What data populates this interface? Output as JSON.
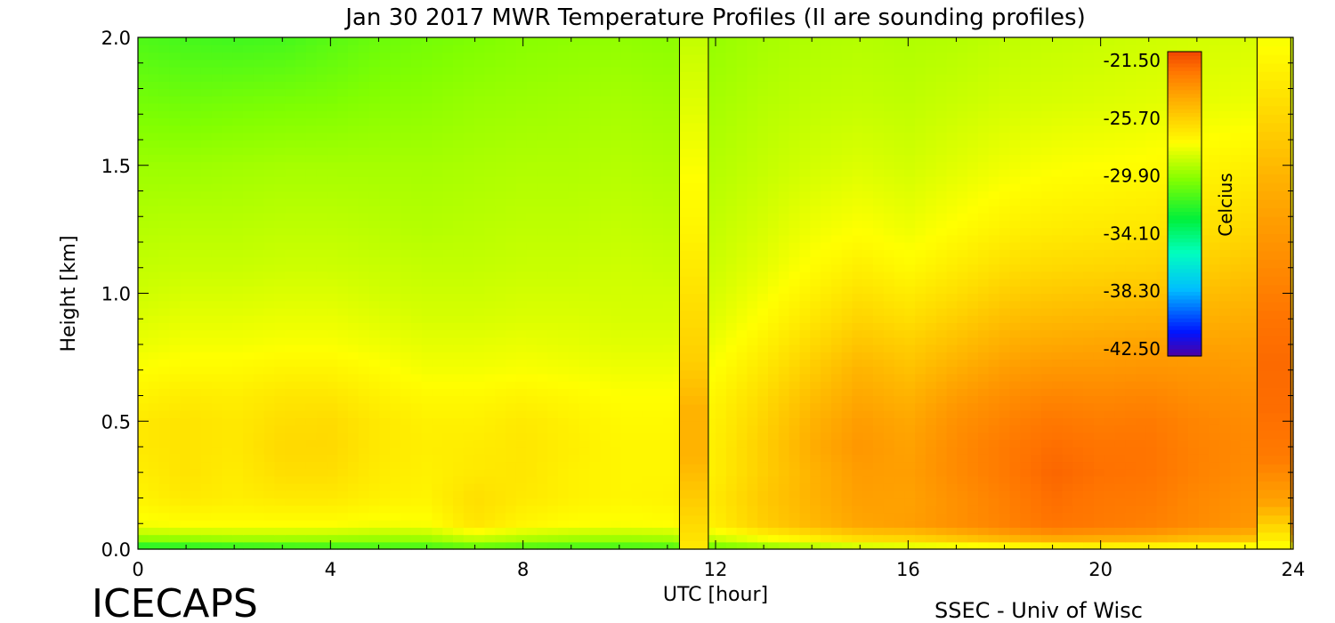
{
  "chart_data": {
    "type": "heatmap",
    "title": "Jan 30 2017 MWR Temperature Profiles (II are sounding profiles)",
    "xlabel": "UTC [hour]",
    "ylabel": "Height [km]",
    "x_ticks": [
      "0",
      "4",
      "8",
      "12",
      "16",
      "20",
      "24"
    ],
    "y_ticks": [
      "0.0",
      "0.5",
      "1.0",
      "1.5",
      "2.0"
    ],
    "xlim": [
      0,
      24
    ],
    "ylim": [
      0,
      2
    ],
    "colorbar": {
      "label": "Celcius",
      "ticks": [
        "-21.50",
        "-25.70",
        "-29.90",
        "-34.10",
        "-38.30",
        "-42.50"
      ],
      "range": [
        -42.5,
        -21.5
      ]
    },
    "heights_km": [
      0.0,
      0.05,
      0.1,
      0.2,
      0.3,
      0.4,
      0.5,
      0.6,
      0.7,
      0.8,
      0.9,
      1.0,
      1.1,
      1.25,
      1.5,
      1.75,
      2.0
    ],
    "hours": [
      0,
      1,
      2,
      3,
      4,
      5,
      6,
      7,
      8,
      9,
      10,
      11,
      12,
      13,
      14,
      15,
      16,
      17,
      18,
      19,
      20,
      21,
      22,
      23
    ],
    "temperature_grid_celsius": [
      [
        -33.0,
        -32.8,
        -32.6,
        -32.4,
        -32.2,
        -32.0,
        -32.0,
        -31.5,
        -31.8,
        -32.0,
        -32.0,
        -31.8,
        -31.0,
        -30.5,
        -30.0,
        -29.5,
        -29.2,
        -29.0,
        -28.8,
        -28.6,
        -28.4,
        -28.5,
        -28.6,
        -28.8
      ],
      [
        -29.5,
        -29.4,
        -29.2,
        -29.2,
        -29.3,
        -29.5,
        -29.4,
        -28.5,
        -29.0,
        -29.3,
        -29.4,
        -29.3,
        -28.5,
        -27.5,
        -26.8,
        -26.0,
        -25.8,
        -25.2,
        -24.5,
        -24.0,
        -24.2,
        -24.3,
        -24.8,
        -25.0
      ],
      [
        -28.0,
        -27.8,
        -27.8,
        -27.8,
        -27.8,
        -28.0,
        -27.9,
        -26.8,
        -27.5,
        -27.8,
        -27.9,
        -27.8,
        -27.2,
        -26.0,
        -25.2,
        -24.5,
        -24.3,
        -23.8,
        -23.3,
        -22.8,
        -23.0,
        -23.2,
        -23.6,
        -24.0
      ],
      [
        -27.4,
        -27.0,
        -27.2,
        -27.0,
        -27.0,
        -27.3,
        -27.4,
        -26.6,
        -27.0,
        -27.3,
        -27.5,
        -27.4,
        -27.0,
        -25.8,
        -25.0,
        -24.3,
        -24.4,
        -23.8,
        -23.2,
        -22.6,
        -22.9,
        -23.0,
        -23.5,
        -23.8
      ],
      [
        -27.2,
        -26.8,
        -27.1,
        -26.6,
        -26.6,
        -27.1,
        -27.3,
        -27.0,
        -26.9,
        -27.3,
        -27.5,
        -27.5,
        -27.2,
        -26.0,
        -25.0,
        -24.2,
        -24.3,
        -23.6,
        -23.0,
        -22.4,
        -22.7,
        -22.8,
        -23.3,
        -23.6
      ],
      [
        -27.0,
        -26.8,
        -27.0,
        -26.4,
        -26.4,
        -27.0,
        -27.2,
        -27.1,
        -26.9,
        -27.2,
        -27.5,
        -27.5,
        -27.2,
        -26.0,
        -24.8,
        -24.0,
        -24.4,
        -23.6,
        -23.0,
        -22.6,
        -22.8,
        -22.8,
        -23.3,
        -23.5
      ],
      [
        -27.0,
        -26.8,
        -27.0,
        -26.6,
        -26.5,
        -27.0,
        -27.3,
        -27.3,
        -27.0,
        -27.3,
        -27.6,
        -27.6,
        -27.3,
        -26.2,
        -25.0,
        -24.2,
        -24.6,
        -23.8,
        -23.3,
        -22.9,
        -23.1,
        -23.0,
        -23.4,
        -23.6
      ],
      [
        -27.4,
        -27.1,
        -27.2,
        -26.9,
        -26.9,
        -27.3,
        -27.6,
        -27.6,
        -27.4,
        -27.6,
        -27.8,
        -27.8,
        -27.5,
        -26.5,
        -25.4,
        -24.6,
        -25.0,
        -24.2,
        -23.7,
        -23.4,
        -23.5,
        -23.4,
        -23.7,
        -23.8
      ],
      [
        -27.8,
        -27.6,
        -27.6,
        -27.4,
        -27.4,
        -27.7,
        -28.0,
        -28.0,
        -27.9,
        -28.0,
        -28.1,
        -28.1,
        -27.8,
        -26.9,
        -25.9,
        -25.0,
        -25.5,
        -24.8,
        -24.2,
        -24.0,
        -24.0,
        -23.9,
        -24.0,
        -24.1
      ],
      [
        -28.2,
        -28.0,
        -28.0,
        -27.9,
        -27.9,
        -28.1,
        -28.3,
        -28.3,
        -28.2,
        -28.3,
        -28.4,
        -28.4,
        -28.1,
        -27.3,
        -26.4,
        -25.6,
        -26.0,
        -25.4,
        -24.8,
        -24.6,
        -24.5,
        -24.4,
        -24.4,
        -24.4
      ],
      [
        -28.5,
        -28.3,
        -28.3,
        -28.2,
        -28.2,
        -28.4,
        -28.6,
        -28.6,
        -28.5,
        -28.5,
        -28.6,
        -28.6,
        -28.4,
        -27.7,
        -26.9,
        -26.2,
        -26.6,
        -26.0,
        -25.4,
        -25.2,
        -25.1,
        -25.0,
        -24.9,
        -24.8
      ],
      [
        -28.8,
        -28.6,
        -28.6,
        -28.5,
        -28.5,
        -28.7,
        -28.8,
        -28.8,
        -28.7,
        -28.7,
        -28.7,
        -28.7,
        -28.6,
        -28.0,
        -27.3,
        -26.7,
        -27.1,
        -26.6,
        -26.0,
        -25.8,
        -25.7,
        -25.6,
        -25.4,
        -25.2
      ],
      [
        -29.0,
        -28.9,
        -28.9,
        -28.8,
        -28.8,
        -28.9,
        -29.0,
        -29.0,
        -28.9,
        -28.9,
        -28.8,
        -28.9,
        -28.8,
        -28.3,
        -27.7,
        -27.2,
        -27.6,
        -27.1,
        -26.6,
        -26.4,
        -26.3,
        -26.2,
        -26.0,
        -25.7
      ],
      [
        -29.3,
        -29.2,
        -29.2,
        -29.1,
        -29.1,
        -29.2,
        -29.3,
        -29.2,
        -29.1,
        -29.1,
        -29.0,
        -29.1,
        -29.0,
        -28.6,
        -28.1,
        -27.8,
        -28.1,
        -27.7,
        -27.3,
        -27.1,
        -27.0,
        -26.9,
        -26.7,
        -26.4
      ],
      [
        -29.8,
        -29.8,
        -29.7,
        -29.6,
        -29.6,
        -29.6,
        -29.6,
        -29.5,
        -29.4,
        -29.4,
        -29.3,
        -29.4,
        -29.3,
        -29.0,
        -28.7,
        -28.5,
        -28.7,
        -28.4,
        -28.1,
        -27.9,
        -27.8,
        -27.7,
        -27.5,
        -27.3
      ],
      [
        -30.6,
        -30.7,
        -30.6,
        -30.5,
        -30.4,
        -30.2,
        -30.1,
        -29.9,
        -29.8,
        -29.7,
        -29.6,
        -29.7,
        -29.6,
        -29.3,
        -29.1,
        -29.0,
        -29.1,
        -28.9,
        -28.7,
        -28.6,
        -28.5,
        -28.4,
        -28.3,
        -28.2
      ],
      [
        -31.4,
        -31.6,
        -31.7,
        -31.6,
        -31.2,
        -30.8,
        -30.6,
        -30.4,
        -30.2,
        -30.1,
        -30.0,
        -30.1,
        -29.9,
        -29.6,
        -29.4,
        -29.3,
        -29.4,
        -29.3,
        -29.1,
        -29.0,
        -28.9,
        -28.8,
        -28.7,
        -28.6
      ]
    ],
    "sounding_profiles": [
      {
        "hours": [
          11.25,
          11.85
        ],
        "temperature_celsius": [
          -27.0,
          -26.0,
          -25.0,
          -25.0,
          -26.0,
          -26.5,
          -27.0,
          -27.5,
          -27.8,
          -28.2,
          -28.6,
          -29.0
        ]
      },
      {
        "hours": [
          23.25,
          23.95
        ],
        "temperature_celsius": [
          -28.0,
          -24.5,
          -23.0,
          -22.6,
          -22.5,
          -22.8,
          -23.5,
          -24.2,
          -25.0,
          -26.0,
          -27.0,
          -28.0
        ]
      }
    ],
    "grid": false,
    "legend": "colorbar inside plot, top-right"
  },
  "branding": {
    "left": "ICECAPS",
    "right": "SSEC - Univ of Wisc"
  }
}
